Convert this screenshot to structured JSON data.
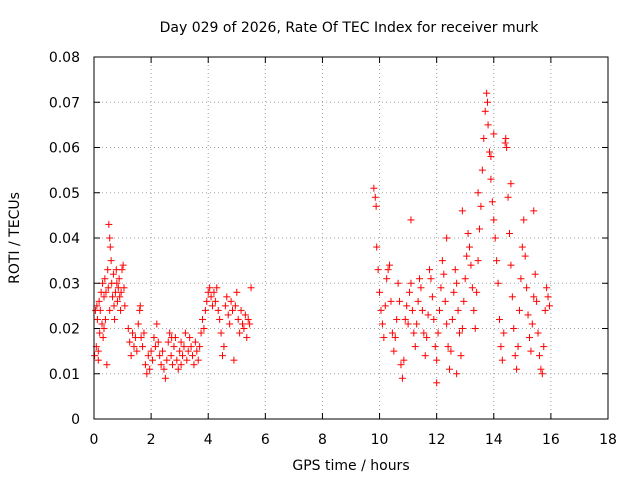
{
  "chart_data": {
    "type": "scatter",
    "title": "Day 029 of 2026, Rate Of TEC Index for receiver murk",
    "xlabel": "GPS time / hours",
    "ylabel": "ROTI / TECUs",
    "xlim": [
      0,
      18
    ],
    "ylim": [
      0,
      0.08
    ],
    "x_ticks": [
      "0",
      "2",
      "4",
      "6",
      "8",
      "10",
      "12",
      "14",
      "16",
      "18"
    ],
    "y_ticks": [
      "0",
      "0.01",
      "0.02",
      "0.03",
      "0.04",
      "0.05",
      "0.06",
      "0.07",
      "0.08"
    ],
    "grid": true,
    "marker": "+",
    "color": "#ff0000",
    "series": [
      {
        "points": [
          [
            0.02,
            0.014
          ],
          [
            0.05,
            0.024
          ],
          [
            0.08,
            0.016
          ],
          [
            0.1,
            0.025
          ],
          [
            0.12,
            0.022
          ],
          [
            0.15,
            0.015
          ],
          [
            0.18,
            0.026
          ],
          [
            0.2,
            0.019
          ],
          [
            0.22,
            0.024
          ],
          [
            0.25,
            0.028
          ],
          [
            0.28,
            0.021
          ],
          [
            0.3,
            0.03
          ],
          [
            0.32,
            0.018
          ],
          [
            0.35,
            0.027
          ],
          [
            0.38,
            0.031
          ],
          [
            0.4,
            0.022
          ],
          [
            0.42,
            0.028
          ],
          [
            0.45,
            0.012
          ],
          [
            0.48,
            0.033
          ],
          [
            0.5,
            0.029
          ],
          [
            0.52,
            0.043
          ],
          [
            0.55,
            0.04
          ],
          [
            0.57,
            0.038
          ],
          [
            0.6,
            0.035
          ],
          [
            0.62,
            0.03
          ],
          [
            0.65,
            0.027
          ],
          [
            0.68,
            0.032
          ],
          [
            0.7,
            0.025
          ],
          [
            0.72,
            0.022
          ],
          [
            0.75,
            0.028
          ],
          [
            0.78,
            0.033
          ],
          [
            0.8,
            0.03
          ],
          [
            0.82,
            0.026
          ],
          [
            0.85,
            0.029
          ],
          [
            0.88,
            0.031
          ],
          [
            0.9,
            0.027
          ],
          [
            0.93,
            0.024
          ],
          [
            0.95,
            0.028
          ],
          [
            0.98,
            0.033
          ],
          [
            1.02,
            0.034
          ],
          [
            1.05,
            0.029
          ],
          [
            1.08,
            0.025
          ],
          [
            0.15,
            0.013
          ],
          [
            0.35,
            0.02
          ],
          [
            0.55,
            0.024
          ],
          [
            1.2,
            0.02
          ],
          [
            1.25,
            0.017
          ],
          [
            1.3,
            0.014
          ],
          [
            1.35,
            0.019
          ],
          [
            1.4,
            0.016
          ],
          [
            1.45,
            0.018
          ],
          [
            1.5,
            0.015
          ],
          [
            1.55,
            0.021
          ],
          [
            1.6,
            0.024
          ],
          [
            1.65,
            0.018
          ],
          [
            1.7,
            0.016
          ],
          [
            1.75,
            0.019
          ],
          [
            1.8,
            0.012
          ],
          [
            1.85,
            0.01
          ],
          [
            1.9,
            0.014
          ],
          [
            1.95,
            0.011
          ],
          [
            2.0,
            0.015
          ],
          [
            2.05,
            0.013
          ],
          [
            2.1,
            0.018
          ],
          [
            2.15,
            0.016
          ],
          [
            2.2,
            0.021
          ],
          [
            2.25,
            0.017
          ],
          [
            2.3,
            0.014
          ],
          [
            2.35,
            0.012
          ],
          [
            2.4,
            0.015
          ],
          [
            2.45,
            0.011
          ],
          [
            2.5,
            0.009
          ],
          [
            2.55,
            0.013
          ],
          [
            2.6,
            0.017
          ],
          [
            2.65,
            0.019
          ],
          [
            2.7,
            0.014
          ],
          [
            2.75,
            0.012
          ],
          [
            2.8,
            0.016
          ],
          [
            2.85,
            0.018
          ],
          [
            2.9,
            0.013
          ],
          [
            2.95,
            0.011
          ],
          [
            3.0,
            0.015
          ],
          [
            3.05,
            0.017
          ],
          [
            3.1,
            0.014
          ],
          [
            3.15,
            0.016
          ],
          [
            3.2,
            0.019
          ],
          [
            3.25,
            0.013
          ],
          [
            3.3,
            0.015
          ],
          [
            3.35,
            0.018
          ],
          [
            3.4,
            0.016
          ],
          [
            3.45,
            0.014
          ],
          [
            3.5,
            0.012
          ],
          [
            3.55,
            0.017
          ],
          [
            3.6,
            0.015
          ],
          [
            3.65,
            0.013
          ],
          [
            3.7,
            0.016
          ],
          [
            3.75,
            0.019
          ],
          [
            1.62,
            0.025
          ],
          [
            2.72,
            0.018
          ],
          [
            3.05,
            0.012
          ],
          [
            3.8,
            0.022
          ],
          [
            3.85,
            0.02
          ],
          [
            3.9,
            0.024
          ],
          [
            3.95,
            0.026
          ],
          [
            4.0,
            0.028
          ],
          [
            4.05,
            0.029
          ],
          [
            4.1,
            0.027
          ],
          [
            4.15,
            0.025
          ],
          [
            4.2,
            0.028
          ],
          [
            4.25,
            0.026
          ],
          [
            4.3,
            0.029
          ],
          [
            4.35,
            0.024
          ],
          [
            4.4,
            0.022
          ],
          [
            4.45,
            0.019
          ],
          [
            4.5,
            0.014
          ],
          [
            4.55,
            0.016
          ],
          [
            4.6,
            0.025
          ],
          [
            4.65,
            0.027
          ],
          [
            4.7,
            0.023
          ],
          [
            4.75,
            0.021
          ],
          [
            4.8,
            0.026
          ],
          [
            4.85,
            0.024
          ],
          [
            4.9,
            0.013
          ],
          [
            4.95,
            0.025
          ],
          [
            5.0,
            0.028
          ],
          [
            5.05,
            0.022
          ],
          [
            5.1,
            0.019
          ],
          [
            5.15,
            0.024
          ],
          [
            5.2,
            0.021
          ],
          [
            5.25,
            0.02
          ],
          [
            5.3,
            0.023
          ],
          [
            5.35,
            0.018
          ],
          [
            5.4,
            0.022
          ],
          [
            5.45,
            0.021
          ],
          [
            5.5,
            0.029
          ],
          [
            9.8,
            0.051
          ],
          [
            9.85,
            0.049
          ],
          [
            9.88,
            0.047
          ],
          [
            9.9,
            0.038
          ],
          [
            9.95,
            0.033
          ],
          [
            10.0,
            0.028
          ],
          [
            10.05,
            0.024
          ],
          [
            10.1,
            0.021
          ],
          [
            10.15,
            0.018
          ],
          [
            10.2,
            0.025
          ],
          [
            10.25,
            0.031
          ],
          [
            10.3,
            0.033
          ],
          [
            10.35,
            0.034
          ],
          [
            10.4,
            0.026
          ],
          [
            10.45,
            0.019
          ],
          [
            10.5,
            0.015
          ],
          [
            10.55,
            0.018
          ],
          [
            10.6,
            0.022
          ],
          [
            10.65,
            0.03
          ],
          [
            10.7,
            0.026
          ],
          [
            10.75,
            0.012
          ],
          [
            10.8,
            0.009
          ],
          [
            10.85,
            0.013
          ],
          [
            10.9,
            0.022
          ],
          [
            10.95,
            0.025
          ],
          [
            11.0,
            0.021
          ],
          [
            11.05,
            0.028
          ],
          [
            11.1,
            0.03
          ],
          [
            11.15,
            0.024
          ],
          [
            11.2,
            0.019
          ],
          [
            11.25,
            0.016
          ],
          [
            11.3,
            0.021
          ],
          [
            11.35,
            0.026
          ],
          [
            11.4,
            0.031
          ],
          [
            11.45,
            0.029
          ],
          [
            11.5,
            0.024
          ],
          [
            11.55,
            0.019
          ],
          [
            11.6,
            0.014
          ],
          [
            11.65,
            0.018
          ],
          [
            11.7,
            0.023
          ],
          [
            11.75,
            0.033
          ],
          [
            11.8,
            0.031
          ],
          [
            11.85,
            0.027
          ],
          [
            11.9,
            0.022
          ],
          [
            11.95,
            0.016
          ],
          [
            12.0,
            0.013
          ],
          [
            12.05,
            0.019
          ],
          [
            12.1,
            0.024
          ],
          [
            12.15,
            0.029
          ],
          [
            12.2,
            0.035
          ],
          [
            12.25,
            0.032
          ],
          [
            12.3,
            0.026
          ],
          [
            12.35,
            0.021
          ],
          [
            12.4,
            0.016
          ],
          [
            12.45,
            0.011
          ],
          [
            12.5,
            0.015
          ],
          [
            12.55,
            0.022
          ],
          [
            12.6,
            0.028
          ],
          [
            12.65,
            0.033
          ],
          [
            12.7,
            0.03
          ],
          [
            12.75,
            0.024
          ],
          [
            12.8,
            0.019
          ],
          [
            12.85,
            0.014
          ],
          [
            12.9,
            0.02
          ],
          [
            12.95,
            0.026
          ],
          [
            13.0,
            0.031
          ],
          [
            13.05,
            0.036
          ],
          [
            13.1,
            0.041
          ],
          [
            13.15,
            0.038
          ],
          [
            13.2,
            0.034
          ],
          [
            13.25,
            0.029
          ],
          [
            13.3,
            0.024
          ],
          [
            13.35,
            0.02
          ],
          [
            13.4,
            0.028
          ],
          [
            13.45,
            0.035
          ],
          [
            13.5,
            0.042
          ],
          [
            13.55,
            0.047
          ],
          [
            13.6,
            0.055
          ],
          [
            13.65,
            0.062
          ],
          [
            13.7,
            0.068
          ],
          [
            13.75,
            0.072
          ],
          [
            13.78,
            0.07
          ],
          [
            13.8,
            0.065
          ],
          [
            13.85,
            0.059
          ],
          [
            13.9,
            0.053
          ],
          [
            13.95,
            0.048
          ],
          [
            14.0,
            0.044
          ],
          [
            14.05,
            0.04
          ],
          [
            14.1,
            0.035
          ],
          [
            14.15,
            0.03
          ],
          [
            14.2,
            0.022
          ],
          [
            14.25,
            0.016
          ],
          [
            14.3,
            0.013
          ],
          [
            14.35,
            0.019
          ],
          [
            14.4,
            0.061
          ],
          [
            14.42,
            0.062
          ],
          [
            14.45,
            0.06
          ],
          [
            14.5,
            0.049
          ],
          [
            14.55,
            0.041
          ],
          [
            14.6,
            0.034
          ],
          [
            14.65,
            0.027
          ],
          [
            14.7,
            0.02
          ],
          [
            14.75,
            0.014
          ],
          [
            14.8,
            0.011
          ],
          [
            14.85,
            0.016
          ],
          [
            14.9,
            0.024
          ],
          [
            14.95,
            0.031
          ],
          [
            15.0,
            0.038
          ],
          [
            15.05,
            0.044
          ],
          [
            15.1,
            0.036
          ],
          [
            15.15,
            0.029
          ],
          [
            15.2,
            0.023
          ],
          [
            15.25,
            0.018
          ],
          [
            15.3,
            0.015
          ],
          [
            15.35,
            0.021
          ],
          [
            15.4,
            0.027
          ],
          [
            15.45,
            0.032
          ],
          [
            15.5,
            0.026
          ],
          [
            15.55,
            0.019
          ],
          [
            15.6,
            0.014
          ],
          [
            15.65,
            0.011
          ],
          [
            15.7,
            0.01
          ],
          [
            15.75,
            0.016
          ],
          [
            15.8,
            0.024
          ],
          [
            15.85,
            0.029
          ],
          [
            15.9,
            0.027
          ],
          [
            15.95,
            0.025
          ],
          [
            11.1,
            0.044
          ],
          [
            12.35,
            0.04
          ],
          [
            12.9,
            0.046
          ],
          [
            13.45,
            0.05
          ],
          [
            13.9,
            0.058
          ],
          [
            14.0,
            0.063
          ],
          [
            14.6,
            0.052
          ],
          [
            15.4,
            0.046
          ],
          [
            12.0,
            0.008
          ],
          [
            12.7,
            0.01
          ]
        ]
      }
    ]
  }
}
